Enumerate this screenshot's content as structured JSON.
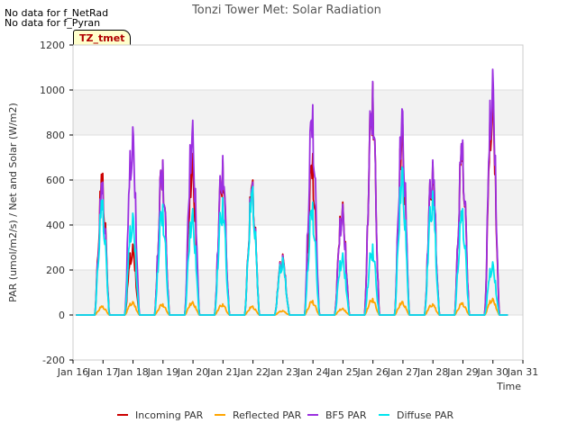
{
  "notes": [
    "No data for f_NetRad",
    "No data for f_Pyran"
  ],
  "badge": "TZ_tmet",
  "chart_data": {
    "type": "line",
    "title": "Tonzi Tower Met: Solar Radiation",
    "xlabel": "Time",
    "ylabel": "PAR (umol/m2/s) / Net and Solar (W/m2)",
    "xlim": [
      16,
      31
    ],
    "ylim": [
      -200,
      1200
    ],
    "xticks": [
      16,
      17,
      18,
      19,
      20,
      21,
      22,
      23,
      24,
      25,
      26,
      27,
      28,
      29,
      30,
      31
    ],
    "xtick_labels": [
      "Jan 16",
      "Jan 17",
      "Jan 18",
      "Jan 19",
      "Jan 20",
      "Jan 21",
      "Jan 22",
      "Jan 23",
      "Jan 24",
      "Jan 25",
      "Jan 26",
      "Jan 27",
      "Jan 28",
      "Jan 29",
      "Jan 30",
      "Jan 31"
    ],
    "yticks": [
      -200,
      0,
      200,
      400,
      600,
      800,
      1000,
      1200
    ],
    "ytick_labels": [
      "-200",
      "0",
      "200",
      "400",
      "600",
      "800",
      "1000",
      "1200"
    ],
    "grid": true,
    "legend_position": "bottom",
    "days": [
      16.1,
      17,
      18,
      19,
      20,
      21,
      22,
      23,
      24,
      25,
      26,
      27,
      28,
      29,
      30,
      30.5
    ],
    "series": [
      {
        "name": "Incoming PAR",
        "color": "#cc0000",
        "daily_peak": [
          0,
          640,
          320,
          700,
          730,
          700,
          610,
          275,
          730,
          510,
          1050,
          860,
          690,
          780,
          1040,
          0
        ]
      },
      {
        "name": "Reflected PAR",
        "color": "#ffa500",
        "daily_peak": [
          0,
          40,
          60,
          50,
          60,
          50,
          40,
          20,
          65,
          30,
          75,
          60,
          50,
          55,
          75,
          0
        ]
      },
      {
        "name": "BF5 PAR",
        "color": "#9b30e0",
        "daily_peak": [
          0,
          600,
          850,
          700,
          880,
          720,
          600,
          270,
          950,
          500,
          1055,
          920,
          700,
          790,
          1110,
          0
        ]
      },
      {
        "name": "Diffuse PAR",
        "color": "#00e5ee",
        "daily_peak": [
          0,
          520,
          460,
          500,
          480,
          530,
          580,
          260,
          510,
          280,
          320,
          660,
          560,
          480,
          240,
          0
        ]
      }
    ]
  }
}
